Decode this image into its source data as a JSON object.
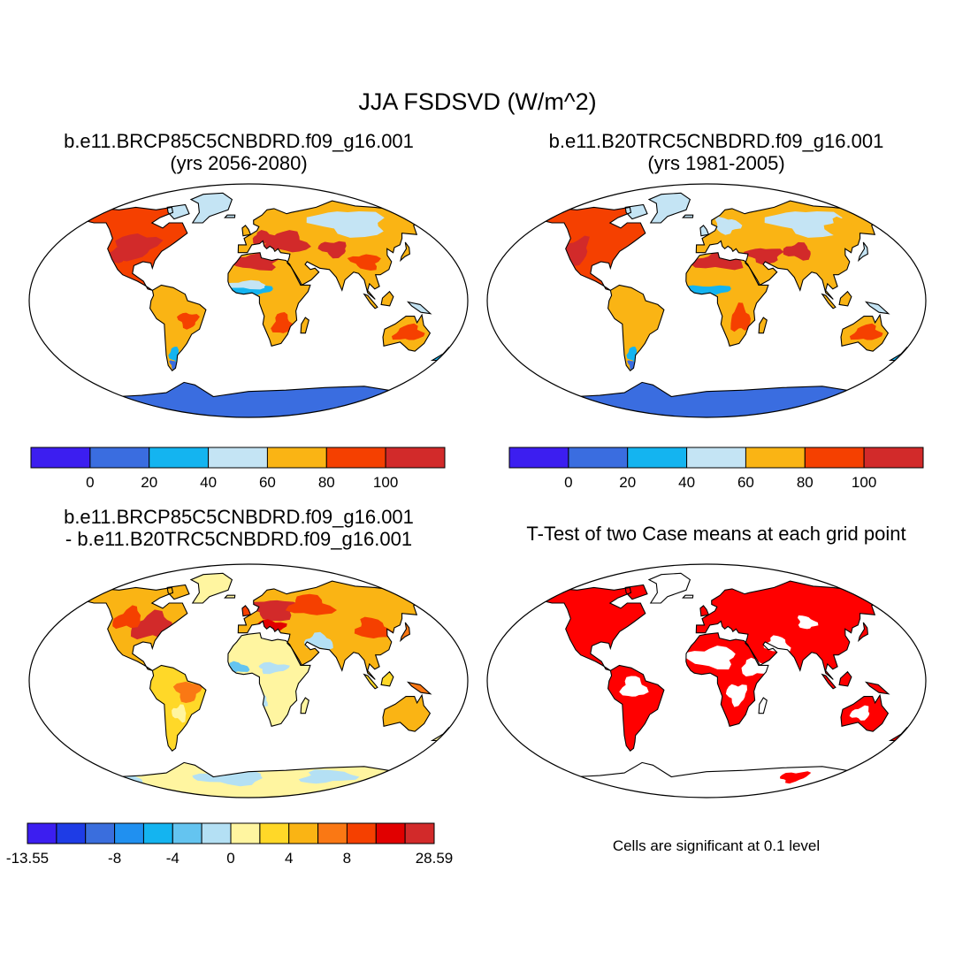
{
  "main_title": "JJA FSDSVD (W/m^2)",
  "panels": [
    {
      "id": "future",
      "title_line1": "b.e11.BRCP85C5CNBDRD.f09_g16.001",
      "title_line2": "(yrs 2056-2080)",
      "variant": "future"
    },
    {
      "id": "historical",
      "title_line1": "b.e11.B20TRC5CNBDRD.f09_g16.001",
      "title_line2": "(yrs 1981-2005)",
      "variant": "hist"
    },
    {
      "id": "difference",
      "title_line1": "b.e11.BRCP85C5CNBDRD.f09_g16.001",
      "title_line2": "- b.e11.B20TRC5CNBDRD.f09_g16.001",
      "variant": "diff"
    },
    {
      "id": "ttest",
      "title_line1": "T-Test of two Case means at each grid point",
      "title_line2": "",
      "variant": "sig"
    }
  ],
  "colorbars": {
    "absolute": {
      "colors": [
        "#3c1ef0",
        "#3a6de0",
        "#14b4f0",
        "#c4e4f4",
        "#fab414",
        "#f54000",
        "#d22a2a"
      ],
      "labels": [
        "0",
        "20",
        "40",
        "60",
        "80",
        "100"
      ]
    },
    "difference": {
      "colors": [
        "#3c1ef0",
        "#1e3ce6",
        "#3a6edd",
        "#2090f0",
        "#14b4f0",
        "#64c4f0",
        "#b4e0f4",
        "#fff5a0",
        "#ffd828",
        "#fab414",
        "#fa7814",
        "#f54000",
        "#e10000",
        "#d22a2a"
      ],
      "labels": [
        "-13.55",
        "-8",
        "-4",
        "0",
        "4",
        "8",
        "28.59"
      ],
      "label_positions": [
        0,
        3,
        5,
        7,
        9,
        11,
        14
      ]
    }
  },
  "significance": {
    "color": "#ff0000",
    "note": "Cells are significant at 0.1 level"
  }
}
